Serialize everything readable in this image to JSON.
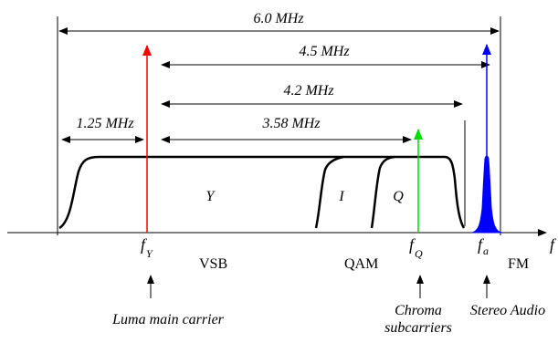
{
  "dimensions": {
    "total": "6.0 MHz",
    "audio_offset": "4.5 MHz",
    "video_bandwidth": "4.2 MHz",
    "chroma_offset": "3.58 MHz",
    "vestigial": "1.25 MHz"
  },
  "bands": {
    "luma": "Y",
    "in_phase": "I",
    "quadrature": "Q"
  },
  "carriers": {
    "luma": {
      "symbol": "f",
      "subscript": "Y",
      "color": "#ff0000"
    },
    "chroma": {
      "symbol": "f",
      "subscript": "Q",
      "color": "#00dd00"
    },
    "audio": {
      "symbol": "f",
      "subscript": "a",
      "color": "#0000ff"
    }
  },
  "axis": {
    "label": "f"
  },
  "modulation": {
    "vsb": "VSB",
    "qam": "QAM",
    "fm": "FM"
  },
  "annotations": {
    "luma": "Luma main carrier",
    "chroma_line1": "Chroma",
    "chroma_line2": "subcarriers",
    "audio": "Stereo Audio"
  }
}
